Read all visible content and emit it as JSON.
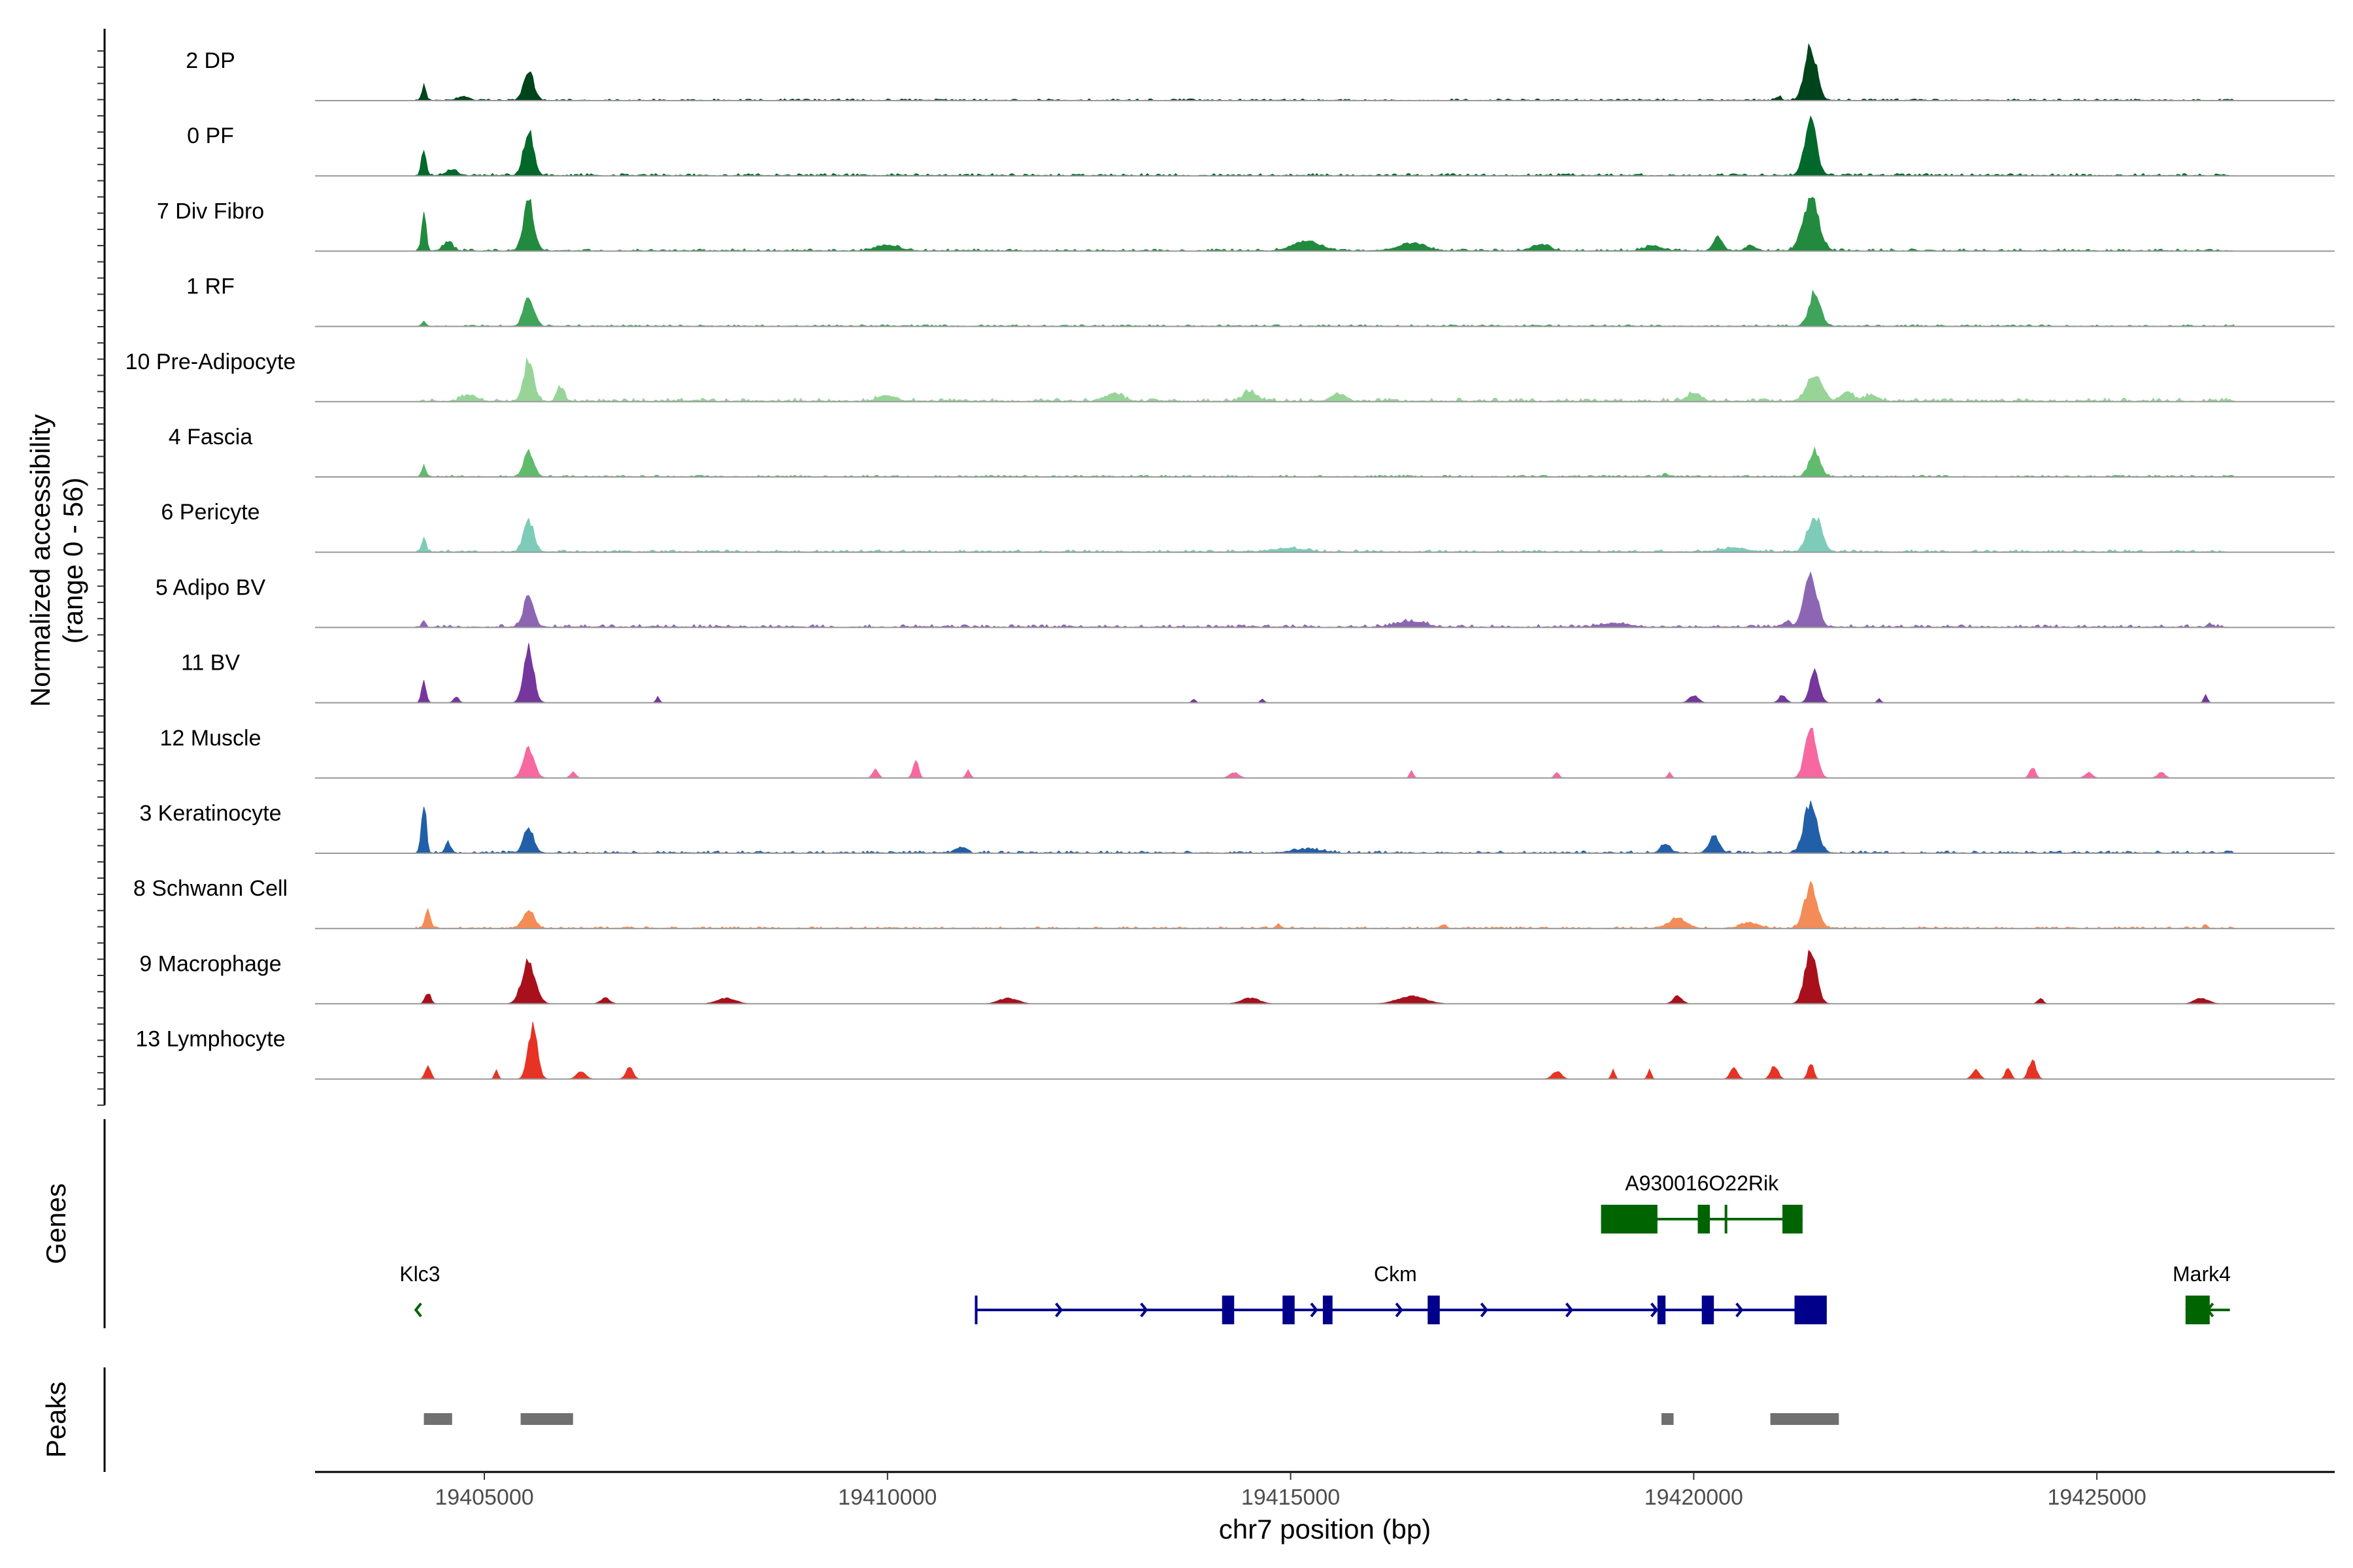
{
  "chart_data": {
    "type": "area",
    "title": "",
    "xlabel": "chr7 position (bp)",
    "ylabel": "Normalized accessibility\n(range 0 - 56)",
    "ylabel_lines": [
      "Normalized accessibility",
      "(range 0 - 56)"
    ],
    "xlim": [
      19402900,
      19427950
    ],
    "y_range": [
      0,
      56
    ],
    "x_ticks": [
      19405000,
      19410000,
      19415000,
      19420000,
      19425000
    ],
    "x_tick_labels": [
      "19405000",
      "19410000",
      "19415000",
      "19420000",
      "19425000"
    ],
    "section_labels": {
      "genes": "Genes",
      "peaks": "Peaks"
    },
    "tracks": [
      {
        "name": "2 DP",
        "color": "#00441b",
        "scale": 1.0,
        "bg": 0.03,
        "peaks": [
          [
            19404250,
            18,
            40
          ],
          [
            19405550,
            32,
            110
          ],
          [
            19421450,
            56,
            130
          ],
          [
            19421050,
            4,
            60
          ],
          [
            19404750,
            4,
            120
          ]
        ]
      },
      {
        "name": "0 PF",
        "color": "#00682a",
        "scale": 1.0,
        "bg": 0.04,
        "peaks": [
          [
            19404250,
            30,
            50
          ],
          [
            19405550,
            48,
            110
          ],
          [
            19421450,
            56,
            130
          ],
          [
            19404600,
            6,
            120
          ]
        ]
      },
      {
        "name": "7 Div Fibro",
        "color": "#218a3e",
        "scale": 1.0,
        "bg": 0.04,
        "peaks": [
          [
            19404250,
            44,
            45
          ],
          [
            19404550,
            10,
            100
          ],
          [
            19405550,
            52,
            110
          ],
          [
            19421450,
            56,
            170
          ],
          [
            19420300,
            14,
            100
          ],
          [
            19420700,
            6,
            100
          ],
          [
            19415200,
            10,
            300
          ],
          [
            19416500,
            8,
            300
          ],
          [
            19410000,
            6,
            250
          ],
          [
            19418100,
            6,
            200
          ],
          [
            19419500,
            5,
            200
          ]
        ]
      },
      {
        "name": "1 RF",
        "color": "#3fa35a",
        "scale": 1.0,
        "bg": 0.03,
        "peaks": [
          [
            19404250,
            6,
            40
          ],
          [
            19405550,
            30,
            110
          ],
          [
            19421500,
            36,
            120
          ]
        ]
      },
      {
        "name": "10 Pre-Adipocyte",
        "color": "#98d498",
        "scale": 1.0,
        "bg": 0.06,
        "peaks": [
          [
            19405550,
            42,
            110
          ],
          [
            19405950,
            14,
            80
          ],
          [
            19404800,
            6,
            150
          ],
          [
            19421500,
            26,
            170
          ],
          [
            19420000,
            8,
            150
          ],
          [
            19421900,
            10,
            120
          ],
          [
            19412800,
            8,
            200
          ],
          [
            19414500,
            10,
            150
          ],
          [
            19415600,
            8,
            150
          ],
          [
            19410000,
            6,
            200
          ],
          [
            19422200,
            6,
            150
          ]
        ]
      },
      {
        "name": "4 Fascia",
        "color": "#61bb6d",
        "scale": 1.0,
        "bg": 0.03,
        "peaks": [
          [
            19404250,
            14,
            40
          ],
          [
            19405550,
            26,
            110
          ],
          [
            19421500,
            26,
            120
          ],
          [
            19419650,
            4,
            40
          ]
        ]
      },
      {
        "name": "6 Pericyte",
        "color": "#7ecbb9",
        "scale": 1.0,
        "bg": 0.04,
        "peaks": [
          [
            19404250,
            18,
            40
          ],
          [
            19405550,
            34,
            110
          ],
          [
            19421500,
            38,
            150
          ],
          [
            19415000,
            4,
            300
          ],
          [
            19420500,
            4,
            300
          ]
        ]
      },
      {
        "name": "5 Adipo BV",
        "color": "#8c66b3",
        "scale": 1.0,
        "bg": 0.05,
        "peaks": [
          [
            19404250,
            8,
            40
          ],
          [
            19405550,
            34,
            110
          ],
          [
            19421450,
            56,
            140
          ],
          [
            19421150,
            6,
            80
          ],
          [
            19416500,
            6,
            300
          ],
          [
            19419000,
            4,
            300
          ],
          [
            19426400,
            5,
            30
          ]
        ]
      },
      {
        "name": "11 BV",
        "color": "#75379b",
        "scale": 1.0,
        "bg": 0.0,
        "peaks": [
          [
            19404250,
            22,
            50
          ],
          [
            19404650,
            6,
            60
          ],
          [
            19405550,
            56,
            110
          ],
          [
            19407150,
            6,
            40
          ],
          [
            19421500,
            36,
            100
          ],
          [
            19421100,
            8,
            80
          ],
          [
            19420000,
            8,
            100
          ],
          [
            19426350,
            8,
            40
          ],
          [
            19413800,
            4,
            40
          ],
          [
            19414650,
            4,
            40
          ],
          [
            19422300,
            4,
            40
          ]
        ]
      },
      {
        "name": "12 Muscle",
        "color": "#f768a1",
        "scale": 1.0,
        "bg": 0.0,
        "peaks": [
          [
            19405550,
            30,
            120
          ],
          [
            19421450,
            56,
            120
          ],
          [
            19410350,
            18,
            60
          ],
          [
            19409850,
            10,
            60
          ],
          [
            19411000,
            8,
            50
          ],
          [
            19424200,
            12,
            60
          ],
          [
            19416500,
            8,
            40
          ],
          [
            19414300,
            6,
            100
          ],
          [
            19418300,
            6,
            50
          ],
          [
            19419700,
            6,
            40
          ],
          [
            19406100,
            6,
            60
          ],
          [
            19424900,
            6,
            80
          ],
          [
            19425800,
            6,
            80
          ]
        ]
      },
      {
        "name": "3 Keratinocyte",
        "color": "#2160a8",
        "scale": 1.0,
        "bg": 0.04,
        "peaks": [
          [
            19404250,
            56,
            50
          ],
          [
            19404550,
            10,
            60
          ],
          [
            19405550,
            26,
            110
          ],
          [
            19421450,
            54,
            140
          ],
          [
            19420250,
            18,
            110
          ],
          [
            19419650,
            10,
            100
          ],
          [
            19410900,
            6,
            100
          ],
          [
            19415200,
            4,
            300
          ]
        ]
      },
      {
        "name": "8 Schwann Cell",
        "color": "#f48c57",
        "scale": 1.0,
        "bg": 0.03,
        "peaks": [
          [
            19404300,
            18,
            60
          ],
          [
            19405550,
            20,
            120
          ],
          [
            19421450,
            44,
            140
          ],
          [
            19419800,
            10,
            200
          ],
          [
            19420700,
            6,
            200
          ],
          [
            19416900,
            4,
            60
          ],
          [
            19414850,
            4,
            60
          ],
          [
            19426350,
            4,
            40
          ]
        ]
      },
      {
        "name": "9 Macrophage",
        "color": "#a8101c",
        "scale": 1.0,
        "bg": 0.0,
        "peaks": [
          [
            19404300,
            12,
            60
          ],
          [
            19405550,
            44,
            150
          ],
          [
            19421450,
            56,
            130
          ],
          [
            19419800,
            8,
            100
          ],
          [
            19416500,
            8,
            300
          ],
          [
            19414500,
            6,
            200
          ],
          [
            19411500,
            6,
            200
          ],
          [
            19408000,
            6,
            200
          ],
          [
            19424300,
            6,
            60
          ],
          [
            19426300,
            6,
            150
          ],
          [
            19406500,
            6,
            100
          ]
        ]
      },
      {
        "name": "13 Lymphocyte",
        "color": "#e63324",
        "scale": 1.0,
        "bg": 0.0,
        "peaks": [
          [
            19404300,
            14,
            60
          ],
          [
            19405600,
            56,
            100
          ],
          [
            19405150,
            10,
            40
          ],
          [
            19406800,
            12,
            80
          ],
          [
            19406200,
            8,
            100
          ],
          [
            19418300,
            8,
            100
          ],
          [
            19419000,
            10,
            40
          ],
          [
            19419450,
            10,
            40
          ],
          [
            19420500,
            12,
            80
          ],
          [
            19421000,
            14,
            80
          ],
          [
            19421450,
            18,
            60
          ],
          [
            19423500,
            10,
            80
          ],
          [
            19424200,
            20,
            80
          ],
          [
            19423900,
            12,
            60
          ]
        ]
      }
    ],
    "genes": [
      {
        "name": "A930016O22Rik",
        "color": "#006400",
        "strand": "-",
        "start": 19418850,
        "end": 19421350,
        "row": 0,
        "exons": [
          [
            19418850,
            19419550
          ],
          [
            19420050,
            19420200
          ],
          [
            19421100,
            19421350
          ]
        ],
        "label_pos": 19420100
      },
      {
        "name": "Klc3",
        "color": "#006400",
        "strand": "-",
        "start": 19404150,
        "end": 19404250,
        "row": 1,
        "exons": [],
        "label_pos": 19404200
      },
      {
        "name": "Ckm",
        "color": "#00008b",
        "strand": "+",
        "start": 19411100,
        "end": 19421650,
        "row": 1,
        "exons": [
          [
            19414150,
            19414300
          ],
          [
            19414900,
            19415050
          ],
          [
            19415400,
            19415520
          ],
          [
            19416700,
            19416850
          ],
          [
            19419550,
            19419650
          ],
          [
            19420100,
            19420250
          ],
          [
            19421250,
            19421650
          ]
        ],
        "label_pos": 19416300
      },
      {
        "name": "Mark4",
        "color": "#006400",
        "strand": "-",
        "start": 19426100,
        "end": 19426650,
        "row": 1,
        "exons": [
          [
            19426100,
            19426400
          ]
        ],
        "label_pos": 19426300
      }
    ],
    "peak_regions": [
      [
        19404250,
        19404600
      ],
      [
        19405450,
        19406100
      ],
      [
        19419600,
        19419750
      ],
      [
        19420950,
        19421800
      ]
    ]
  }
}
